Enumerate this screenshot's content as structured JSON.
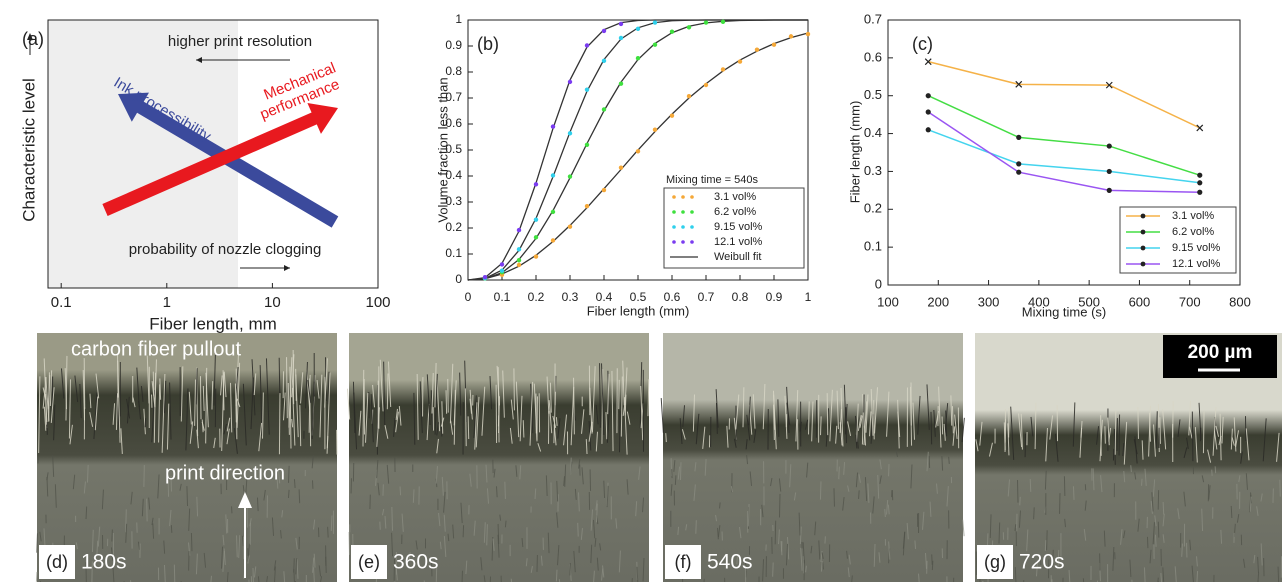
{
  "chart_data": [
    {
      "type": "schematic",
      "panel_label": "(a)",
      "x_label": "Fiber length, mm",
      "y_label": "Characteristic level",
      "xscale": "log",
      "xlim": [
        0.075,
        100
      ],
      "xticks": [
        0.1,
        1,
        10,
        100
      ],
      "annotations": [
        "higher print resolution",
        "probability of nozzle clogging",
        "Ink processibility",
        "Mechanical",
        "performance"
      ]
    },
    {
      "type": "scatter",
      "panel_label": "(b)",
      "x_label": "Fiber length (mm)",
      "y_label": "Volume fraction less than",
      "legend_title": "Mixing time = 540s",
      "legend": "lower right",
      "xlim": [
        0,
        1
      ],
      "ylim": [
        0,
        1
      ],
      "xticks": [
        0,
        0.1,
        0.2,
        0.3,
        0.4,
        0.5,
        0.6,
        0.7,
        0.8,
        0.9,
        1
      ],
      "yticks": [
        0,
        0.1,
        0.2,
        0.3,
        0.4,
        0.5,
        0.6,
        0.7,
        0.8,
        0.9,
        1
      ],
      "series": [
        {
          "name": "3.1 vol%",
          "color": "#f5a838",
          "x": [
            0.05,
            0.1,
            0.15,
            0.2,
            0.25,
            0.3,
            0.35,
            0.4,
            0.45,
            0.5,
            0.55,
            0.6,
            0.65,
            0.7,
            0.75,
            0.8,
            0.85,
            0.9,
            0.95,
            1
          ],
          "values": [
            0.008,
            0.02,
            0.058,
            0.09,
            0.152,
            0.205,
            0.284,
            0.346,
            0.432,
            0.495,
            0.578,
            0.632,
            0.707,
            0.75,
            0.81,
            0.84,
            0.886,
            0.905,
            0.937,
            0.946
          ]
        },
        {
          "name": "6.2 vol%",
          "color": "#3ee03e",
          "x": [
            0.05,
            0.1,
            0.15,
            0.2,
            0.25,
            0.3,
            0.35,
            0.4,
            0.45,
            0.5,
            0.55,
            0.6,
            0.65,
            0.7,
            0.75
          ],
          "values": [
            0.006,
            0.03,
            0.076,
            0.164,
            0.262,
            0.398,
            0.52,
            0.656,
            0.755,
            0.853,
            0.905,
            0.955,
            0.972,
            0.99,
            0.993
          ]
        },
        {
          "name": "9.15 vol%",
          "color": "#2fd0ec",
          "x": [
            0.05,
            0.1,
            0.15,
            0.2,
            0.25,
            0.3,
            0.35,
            0.4,
            0.45,
            0.5,
            0.55
          ],
          "values": [
            0.007,
            0.036,
            0.118,
            0.232,
            0.402,
            0.564,
            0.732,
            0.843,
            0.931,
            0.966,
            0.99
          ]
        },
        {
          "name": "12.1 vol%",
          "color": "#7a3cf0",
          "x": [
            0.05,
            0.1,
            0.15,
            0.2,
            0.25,
            0.3,
            0.35,
            0.4,
            0.45
          ],
          "values": [
            0.011,
            0.06,
            0.192,
            0.368,
            0.59,
            0.762,
            0.902,
            0.958,
            0.985
          ]
        }
      ],
      "fit_name": "Weibull fit",
      "fit_color": "#333333",
      "fit_x": [
        0,
        0.05,
        0.1,
        0.15,
        0.2,
        0.25,
        0.3,
        0.35,
        0.4,
        0.45,
        0.5,
        0.55,
        0.6,
        0.65,
        0.7,
        0.75,
        0.8,
        0.85,
        0.9,
        0.95,
        1
      ],
      "fits": [
        [
          0,
          0.005,
          0.023,
          0.053,
          0.095,
          0.148,
          0.21,
          0.278,
          0.351,
          0.425,
          0.5,
          0.571,
          0.638,
          0.7,
          0.755,
          0.804,
          0.846,
          0.88,
          0.909,
          0.932,
          0.95
        ],
        [
          0,
          0.005,
          0.028,
          0.079,
          0.16,
          0.267,
          0.393,
          0.525,
          0.651,
          0.761,
          0.848,
          0.91,
          0.951,
          0.976,
          0.989,
          0.995,
          0.998,
          0.999,
          1,
          1,
          1
        ],
        [
          0,
          0.006,
          0.038,
          0.114,
          0.237,
          0.397,
          0.569,
          0.726,
          0.848,
          0.927,
          0.97,
          0.99,
          0.997,
          0.999,
          1,
          1,
          1,
          1,
          1,
          1,
          1
        ],
        [
          0,
          0.009,
          0.064,
          0.188,
          0.373,
          0.583,
          0.769,
          0.896,
          0.963,
          0.99,
          0.998,
          1,
          1,
          1,
          1,
          1,
          1,
          1,
          1,
          1,
          1
        ]
      ]
    },
    {
      "type": "line",
      "panel_label": "(c)",
      "x_label": "Mixing time (s)",
      "y_label": "Fiber length (mm)",
      "legend": "lower right",
      "xlim": [
        100,
        800
      ],
      "xticks": [
        100,
        200,
        300,
        400,
        500,
        600,
        700,
        800
      ],
      "ylim": [
        0,
        0.7
      ],
      "yticks": [
        0,
        0.1,
        0.2,
        0.3,
        0.4,
        0.5,
        0.6,
        0.7
      ],
      "series": [
        {
          "name": "3.1 vol%",
          "color": "#f5b248",
          "marker": "x",
          "x": [
            180,
            360,
            540,
            720
          ],
          "values": [
            0.59,
            0.53,
            0.528,
            0.415
          ]
        },
        {
          "name": "6.2 vol%",
          "color": "#44dd44",
          "marker": "circle",
          "x": [
            180,
            360,
            540,
            720
          ],
          "values": [
            0.5,
            0.39,
            0.367,
            0.29
          ]
        },
        {
          "name": "9.15 vol%",
          "color": "#44d4ee",
          "marker": "circle",
          "x": [
            180,
            360,
            540,
            720
          ],
          "values": [
            0.41,
            0.32,
            0.3,
            0.27
          ]
        },
        {
          "name": "12.1 vol%",
          "color": "#9a55f2",
          "marker": "circle",
          "x": [
            180,
            360,
            540,
            720
          ],
          "values": [
            0.457,
            0.298,
            0.25,
            0.245
          ]
        }
      ]
    }
  ],
  "photos": {
    "panels": [
      {
        "tag": "(d)",
        "time": "180s"
      },
      {
        "tag": "(e)",
        "time": "360s"
      },
      {
        "tag": "(f)",
        "time": "540s"
      },
      {
        "tag": "(g)",
        "time": "720s"
      }
    ],
    "annotations": [
      "carbon fiber pullout",
      "print direction"
    ],
    "scale_bar": "200 µm"
  }
}
